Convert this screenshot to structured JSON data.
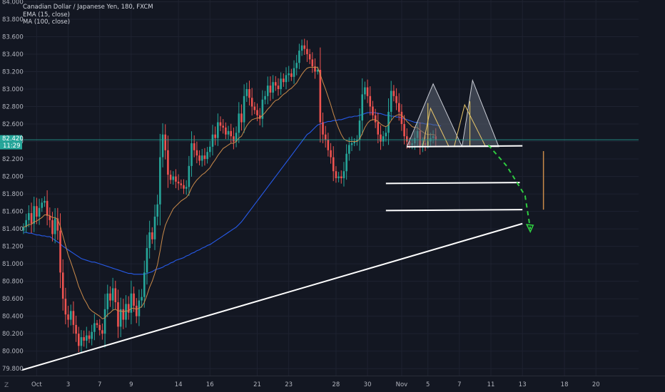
{
  "legend": {
    "symbol": "Canadian Dollar / Japanese Yen, 180, FXCM",
    "ema": "EMA (15, close)",
    "ma": "MA (100, close)"
  },
  "price_tag": {
    "price": "82.420",
    "timer": "11:29"
  },
  "corner_label": "Z",
  "colors": {
    "background": "#131722",
    "up": "#26a69a",
    "down": "#ef5350",
    "ema": "#c98a4a",
    "ma": "#2962ff",
    "trend": "#ffffff",
    "price_line": "#26a69a",
    "projection": "#2ecc40",
    "pattern_fill": "#5d6472",
    "tag_bg": "#26a69a"
  },
  "chart_data": {
    "type": "candlestick",
    "title": "Canadian Dollar / Japanese Yen, 180, FXCM",
    "ylim": [
      79.72,
      84.02
    ],
    "y_ticks": [
      "84.000",
      "83.800",
      "83.600",
      "83.400",
      "83.200",
      "83.000",
      "82.800",
      "82.600",
      "82.400",
      "82.200",
      "82.000",
      "81.800",
      "81.600",
      "81.400",
      "81.200",
      "81.000",
      "80.800",
      "80.600",
      "80.400",
      "80.200",
      "80.000",
      "79.800"
    ],
    "x_ticks": [
      {
        "label": "Oct",
        "i": 5
      },
      {
        "label": "3",
        "i": 17
      },
      {
        "label": "7",
        "i": 29
      },
      {
        "label": "9",
        "i": 41
      },
      {
        "label": "14",
        "i": 59
      },
      {
        "label": "16",
        "i": 71
      },
      {
        "label": "21",
        "i": 89
      },
      {
        "label": "23",
        "i": 101
      },
      {
        "label": "28",
        "i": 119
      },
      {
        "label": "30",
        "i": 131
      },
      {
        "label": "Nov",
        "i": 144
      },
      {
        "label": "5",
        "i": 154
      },
      {
        "label": "7",
        "i": 166
      },
      {
        "label": "11",
        "i": 178
      },
      {
        "label": "13",
        "i": 190
      },
      {
        "label": "18",
        "i": 206
      },
      {
        "label": "20",
        "i": 218
      }
    ],
    "close": [
      81.42,
      81.5,
      81.58,
      81.46,
      81.66,
      81.54,
      81.64,
      81.7,
      81.72,
      81.55,
      81.5,
      81.34,
      81.52,
      81.38,
      80.9,
      80.6,
      80.42,
      80.36,
      80.46,
      80.3,
      80.2,
      80.06,
      80.16,
      80.12,
      80.18,
      80.14,
      80.22,
      80.32,
      80.3,
      80.24,
      80.2,
      80.48,
      80.66,
      80.58,
      80.72,
      80.56,
      80.28,
      80.48,
      80.36,
      80.54,
      80.44,
      80.66,
      80.52,
      80.4,
      80.58,
      80.62,
      80.9,
      81.18,
      81.36,
      81.28,
      81.54,
      81.68,
      82.22,
      82.48,
      82.3,
      82.02,
      81.96,
      82.0,
      81.94,
      81.92,
      81.9,
      81.86,
      81.88,
      82.12,
      82.38,
      82.3,
      82.24,
      82.18,
      82.24,
      82.2,
      82.28,
      82.34,
      82.48,
      82.44,
      82.62,
      82.58,
      82.56,
      82.48,
      82.52,
      82.46,
      82.4,
      82.5,
      82.72,
      82.62,
      82.92,
      83.0,
      82.9,
      82.8,
      82.76,
      82.7,
      82.66,
      82.88,
      82.92,
      83.04,
      82.96,
      83.08,
      83.04,
      83.0,
      83.12,
      83.08,
      83.16,
      83.18,
      83.14,
      83.24,
      83.3,
      83.44,
      83.5,
      83.46,
      83.4,
      83.34,
      83.26,
      83.2,
      83.22,
      82.62,
      82.48,
      82.42,
      82.3,
      82.22,
      82.06,
      81.98,
      82.0,
      81.98,
      82.06,
      82.26,
      82.36,
      82.38,
      82.4,
      82.42,
      82.64,
      82.94,
      83.02,
      82.92,
      82.8,
      82.7,
      82.62,
      82.48,
      82.4,
      82.46,
      82.5,
      82.74,
      82.98,
      82.92,
      82.84,
      82.74,
      82.6,
      82.46,
      82.4,
      82.36,
      82.38,
      82.44,
      82.52,
      82.34,
      82.38,
      82.36,
      82.4,
      82.44,
      82.46,
      82.42
    ],
    "ema_15": [
      81.42,
      81.43,
      81.45,
      81.45,
      81.48,
      81.49,
      81.51,
      81.53,
      81.56,
      81.56,
      81.55,
      81.53,
      81.53,
      81.51,
      81.43,
      81.32,
      81.21,
      81.1,
      81.02,
      80.93,
      80.84,
      80.74,
      80.67,
      80.6,
      80.55,
      80.49,
      80.46,
      80.44,
      80.42,
      80.4,
      80.37,
      80.38,
      80.42,
      80.44,
      80.47,
      80.48,
      80.46,
      80.46,
      80.45,
      80.46,
      80.46,
      80.49,
      80.49,
      80.48,
      80.49,
      80.51,
      80.56,
      80.64,
      80.73,
      80.8,
      80.89,
      80.99,
      81.15,
      81.32,
      81.44,
      81.51,
      81.57,
      81.63,
      81.66,
      81.69,
      81.72,
      81.74,
      81.76,
      81.8,
      81.87,
      81.92,
      81.96,
      81.99,
      82.02,
      82.04,
      82.07,
      82.1,
      82.15,
      82.19,
      82.24,
      82.28,
      82.32,
      82.34,
      82.36,
      82.38,
      82.38,
      82.4,
      82.44,
      82.46,
      82.52,
      82.58,
      82.62,
      82.65,
      82.66,
      82.67,
      82.67,
      82.7,
      82.73,
      82.77,
      82.8,
      82.84,
      82.87,
      82.88,
      82.91,
      82.94,
      82.96,
      82.99,
      83.01,
      83.04,
      83.07,
      83.12,
      83.17,
      83.21,
      83.24,
      83.25,
      83.25,
      83.25,
      83.25,
      83.17,
      83.08,
      83.0,
      82.91,
      82.82,
      82.72,
      82.63,
      82.55,
      82.48,
      82.43,
      82.41,
      82.4,
      82.4,
      82.4,
      82.4,
      82.43,
      82.49,
      82.56,
      82.61,
      82.64,
      82.65,
      82.65,
      82.63,
      82.6,
      82.58,
      82.57,
      82.59,
      82.64,
      82.68,
      82.7,
      82.71,
      82.7,
      82.67,
      82.63,
      82.6,
      82.57,
      82.56,
      82.56,
      82.53,
      82.51,
      82.49,
      82.48,
      82.48,
      82.48,
      82.47
    ],
    "ma_100": [
      81.36,
      81.36,
      81.35,
      81.35,
      81.34,
      81.33,
      81.33,
      81.32,
      81.32,
      81.31,
      81.31,
      81.29,
      81.27,
      81.25,
      81.23,
      81.2,
      81.18,
      81.16,
      81.14,
      81.12,
      81.1,
      81.08,
      81.06,
      81.05,
      81.04,
      81.03,
      81.02,
      81.02,
      81.01,
      81.0,
      80.99,
      80.98,
      80.97,
      80.96,
      80.95,
      80.94,
      80.93,
      80.92,
      80.91,
      80.9,
      80.89,
      80.89,
      80.88,
      80.88,
      80.88,
      80.88,
      80.88,
      80.89,
      80.9,
      80.91,
      80.93,
      80.94,
      80.95,
      80.96,
      80.98,
      80.99,
      81.01,
      81.02,
      81.04,
      81.05,
      81.06,
      81.07,
      81.09,
      81.1,
      81.12,
      81.13,
      81.15,
      81.16,
      81.18,
      81.19,
      81.21,
      81.22,
      81.24,
      81.26,
      81.28,
      81.3,
      81.32,
      81.34,
      81.36,
      81.38,
      81.4,
      81.42,
      81.45,
      81.48,
      81.52,
      81.56,
      81.6,
      81.64,
      81.68,
      81.72,
      81.76,
      81.8,
      81.84,
      81.88,
      81.92,
      81.96,
      82.0,
      82.04,
      82.08,
      82.12,
      82.16,
      82.2,
      82.24,
      82.28,
      82.32,
      82.36,
      82.4,
      82.44,
      82.48,
      82.5,
      82.53,
      82.56,
      82.59,
      82.6,
      82.61,
      82.62,
      82.63,
      82.63,
      82.64,
      82.64,
      82.65,
      82.65,
      82.66,
      82.67,
      82.68,
      82.68,
      82.69,
      82.69,
      82.7,
      82.71,
      82.72,
      82.73,
      82.73,
      82.73,
      82.73,
      82.72,
      82.72,
      82.71,
      82.7,
      82.7,
      82.69,
      82.69,
      82.68,
      82.68,
      82.67,
      82.66,
      82.65,
      82.64,
      82.63,
      82.62,
      82.62,
      82.61,
      82.61,
      82.6,
      82.6,
      82.6,
      82.59,
      82.59,
      82.58,
      82.58
    ],
    "last_price": 82.42,
    "annotations": {
      "main_trendline": [
        [
          -1,
          79.78
        ],
        [
          190,
          81.46
        ]
      ],
      "neckline": [
        [
          146,
          82.34
        ],
        [
          190,
          82.35
        ]
      ],
      "support_1": [
        [
          138,
          81.92
        ],
        [
          189,
          81.93
        ]
      ],
      "support_2": [
        [
          138,
          81.61
        ],
        [
          190,
          81.62
        ]
      ],
      "measure_bar": [
        [
          198,
          82.29
        ],
        [
          198,
          81.62
        ]
      ],
      "projection_path": [
        [
          177,
          82.36
        ],
        [
          184,
          82.12
        ],
        [
          191,
          81.78
        ],
        [
          193,
          81.4
        ]
      ],
      "left_shoulder": [
        [
          146,
          82.34
        ],
        [
          156,
          83.06
        ],
        [
          167,
          82.34
        ]
      ],
      "right_shoulder": [
        [
          167,
          82.34
        ],
        [
          171,
          83.1
        ],
        [
          181,
          82.34
        ]
      ],
      "left_inner": [
        [
          152,
          82.34
        ],
        [
          155,
          82.78
        ],
        [
          162,
          82.34
        ]
      ],
      "right_inner": [
        [
          164,
          82.34
        ],
        [
          168,
          82.82
        ],
        [
          176,
          82.34
        ]
      ],
      "left_marker": [
        [
          154,
          82.84
        ],
        [
          154,
          82.34
        ]
      ],
      "right_marker": [
        [
          170,
          82.86
        ],
        [
          170,
          82.34
        ]
      ]
    }
  }
}
